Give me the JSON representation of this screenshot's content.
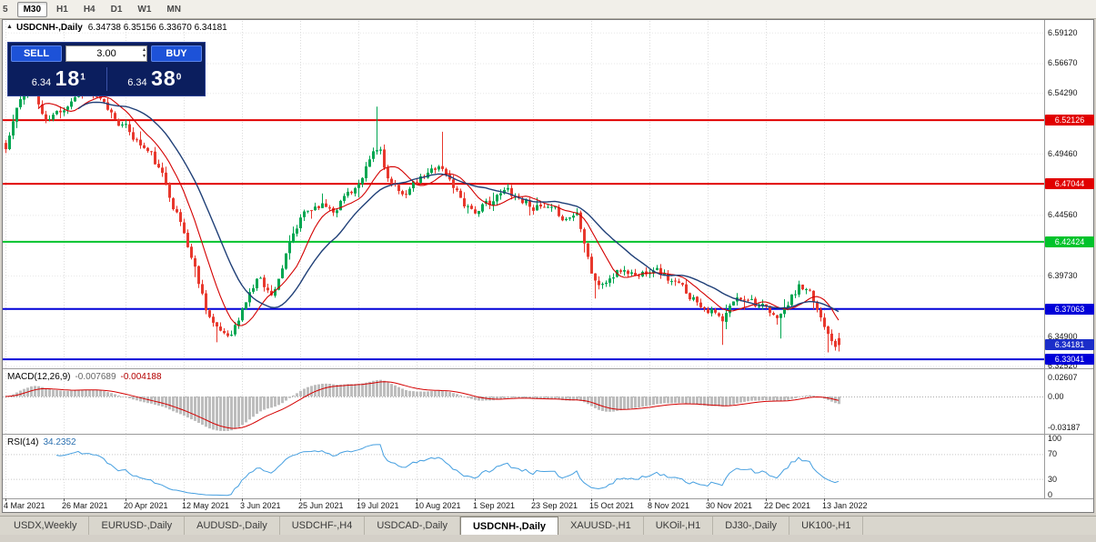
{
  "toolbar": {
    "timeframes": [
      {
        "label": "5",
        "active": false
      },
      {
        "label": "M30",
        "active": true
      },
      {
        "label": "H1",
        "active": false
      },
      {
        "label": "H4",
        "active": false
      },
      {
        "label": "D1",
        "active": false
      },
      {
        "label": "W1",
        "active": false
      },
      {
        "label": "MN",
        "active": false
      }
    ]
  },
  "title": {
    "symbol": "USDCNH-,Daily",
    "ohlc": "6.34738 6.35156 6.33670 6.34181"
  },
  "trade_panel": {
    "sell_label": "SELL",
    "buy_label": "BUY",
    "volume": "3.00",
    "sell_price_small": "6.34",
    "sell_price_big": "18",
    "sell_price_sup": "1",
    "buy_price_small": "6.34",
    "buy_price_big": "38",
    "buy_price_sup": "0"
  },
  "price_axis_labels": [
    {
      "text": "6.59120",
      "price": 6.5912
    },
    {
      "text": "6.56670",
      "price": 6.5667
    },
    {
      "text": "6.54290",
      "price": 6.5429
    },
    {
      "text": "6.49460",
      "price": 6.4946
    },
    {
      "text": "6.44560",
      "price": 6.4456
    },
    {
      "text": "6.39730",
      "price": 6.3973
    },
    {
      "text": "6.34900",
      "price": 6.349
    },
    {
      "text": "6.32520",
      "price": 6.3252
    }
  ],
  "hlines": [
    {
      "price": 6.52126,
      "label": "6.52126",
      "color": "#e10000"
    },
    {
      "price": 6.47044,
      "label": "6.47044",
      "color": "#e10000"
    },
    {
      "price": 6.42424,
      "label": "6.42424",
      "color": "#00c32b"
    },
    {
      "price": 6.37063,
      "label": "6.37063",
      "color": "#0000d8"
    },
    {
      "price": 6.33041,
      "label": "6.33041",
      "color": "#0000d8"
    }
  ],
  "current_price": {
    "price": 6.34181,
    "label": "6.34181",
    "color": "#1b2ec9"
  },
  "macd_panel": {
    "name": "MACD(12,26,9)",
    "value_main": "-0.007689",
    "value_signal": "-0.004188",
    "axis_labels": {
      "top": "0.02607",
      "zero": "0.00",
      "bottom": "-0.03187"
    }
  },
  "rsi_panel": {
    "name": "RSI(14)",
    "value": "34.2352",
    "axis_labels": [
      {
        "text": "100",
        "v": 100
      },
      {
        "text": "70",
        "v": 70
      },
      {
        "text": "30",
        "v": 30
      },
      {
        "text": "0",
        "v": 0
      }
    ],
    "levels": [
      70,
      30
    ]
  },
  "date_axis": [
    {
      "text": "4 Mar 2021",
      "i": 0
    },
    {
      "text": "26 Mar 2021",
      "i": 16
    },
    {
      "text": "20 Apr 2021",
      "i": 33
    },
    {
      "text": "12 May 2021",
      "i": 49
    },
    {
      "text": "3 Jun 2021",
      "i": 65
    },
    {
      "text": "25 Jun 2021",
      "i": 81
    },
    {
      "text": "19 Jul 2021",
      "i": 97
    },
    {
      "text": "10 Aug 2021",
      "i": 113
    },
    {
      "text": "1 Sep 2021",
      "i": 129
    },
    {
      "text": "23 Sep 2021",
      "i": 145
    },
    {
      "text": "15 Oct 2021",
      "i": 161
    },
    {
      "text": "8 Nov 2021",
      "i": 177
    },
    {
      "text": "30 Nov 2021",
      "i": 193
    },
    {
      "text": "22 Dec 2021",
      "i": 209
    },
    {
      "text": "13 Jan 2022",
      "i": 225
    }
  ],
  "tabs": [
    "USDX,Weekly",
    "EURUSD-,Daily",
    "AUDUSD-,Daily",
    "USDCHF-,H4",
    "USDCAD-,Daily",
    "USDCNH-,Daily",
    "XAUUSD-,H1",
    "UKOil-,H1",
    "DJ30-,Daily",
    "UK100-,H1"
  ],
  "active_tab": "USDCNH-,Daily",
  "colors": {
    "up": "#00A651",
    "down": "#E8382D",
    "ma_fast": "#D40000",
    "ma_slow": "#1F3F77",
    "macd_hist": "#BDBDBD",
    "macd_signal": "#D40000",
    "rsi": "#459FE0",
    "grid": "#DCDCDC",
    "hgrid": "#E7E7E7"
  },
  "chart_data": {
    "type": "candlestick",
    "symbol": "USDCNH-",
    "timeframe": "Daily",
    "visible_price_top": 6.5997,
    "visible_price_bottom": 6.324,
    "candle_count": 230,
    "last_candle": {
      "open": 6.34738,
      "high": 6.35156,
      "low": 6.3367,
      "close": 6.34181
    },
    "trend_anchors": [
      [
        0,
        6.498
      ],
      [
        3,
        6.53
      ],
      [
        7,
        6.549
      ],
      [
        11,
        6.519
      ],
      [
        15,
        6.529
      ],
      [
        20,
        6.545
      ],
      [
        24,
        6.541
      ],
      [
        28,
        6.529
      ],
      [
        32,
        6.518
      ],
      [
        36,
        6.505
      ],
      [
        40,
        6.493
      ],
      [
        44,
        6.47
      ],
      [
        48,
        6.44
      ],
      [
        52,
        6.403
      ],
      [
        55,
        6.373
      ],
      [
        58,
        6.353
      ],
      [
        61,
        6.35
      ],
      [
        64,
        6.362
      ],
      [
        67,
        6.384
      ],
      [
        70,
        6.397
      ],
      [
        73,
        6.381
      ],
      [
        76,
        6.405
      ],
      [
        79,
        6.428
      ],
      [
        82,
        6.446
      ],
      [
        86,
        6.455
      ],
      [
        90,
        6.451
      ],
      [
        94,
        6.464
      ],
      [
        98,
        6.472
      ],
      [
        101,
        6.494
      ],
      [
        103,
        6.497
      ],
      [
        105,
        6.475
      ],
      [
        108,
        6.461
      ],
      [
        112,
        6.469
      ],
      [
        116,
        6.477
      ],
      [
        119,
        6.487
      ],
      [
        122,
        6.473
      ],
      [
        126,
        6.456
      ],
      [
        130,
        6.448
      ],
      [
        134,
        6.458
      ],
      [
        138,
        6.465
      ],
      [
        142,
        6.458
      ],
      [
        146,
        6.452
      ],
      [
        150,
        6.447
      ],
      [
        154,
        6.443
      ],
      [
        157,
        6.448
      ],
      [
        159,
        6.428
      ],
      [
        161,
        6.402
      ],
      [
        163,
        6.389
      ],
      [
        166,
        6.395
      ],
      [
        170,
        6.402
      ],
      [
        174,
        6.397
      ],
      [
        178,
        6.406
      ],
      [
        182,
        6.395
      ],
      [
        186,
        6.386
      ],
      [
        190,
        6.378
      ],
      [
        194,
        6.37
      ],
      [
        197,
        6.359
      ],
      [
        200,
        6.376
      ],
      [
        204,
        6.382
      ],
      [
        208,
        6.372
      ],
      [
        211,
        6.362
      ],
      [
        214,
        6.37
      ],
      [
        218,
        6.388
      ],
      [
        221,
        6.38
      ],
      [
        224,
        6.364
      ],
      [
        227,
        6.35
      ],
      [
        229,
        6.342
      ]
    ],
    "wick_spikes": [
      {
        "i": 7,
        "high": 6.556
      },
      {
        "i": 20,
        "high": 6.552
      },
      {
        "i": 52,
        "low": 6.396
      },
      {
        "i": 58,
        "low": 6.344
      },
      {
        "i": 102,
        "high": 6.532
      },
      {
        "i": 120,
        "high": 6.512
      },
      {
        "i": 162,
        "low": 6.379
      },
      {
        "i": 197,
        "low": 6.342
      },
      {
        "i": 213,
        "low": 6.347
      },
      {
        "i": 226,
        "low": 6.336
      }
    ],
    "noise": {
      "seed": 11,
      "walk": 0.0038,
      "decay": 0.5,
      "wick": 0.0035
    },
    "moving_averages": [
      {
        "period": 10,
        "color_key": "ma_fast"
      },
      {
        "period": 21,
        "color_key": "ma_slow"
      }
    ],
    "macd": {
      "fast": 12,
      "slow": 26,
      "signal": 9
    },
    "rsi_period": 14
  }
}
